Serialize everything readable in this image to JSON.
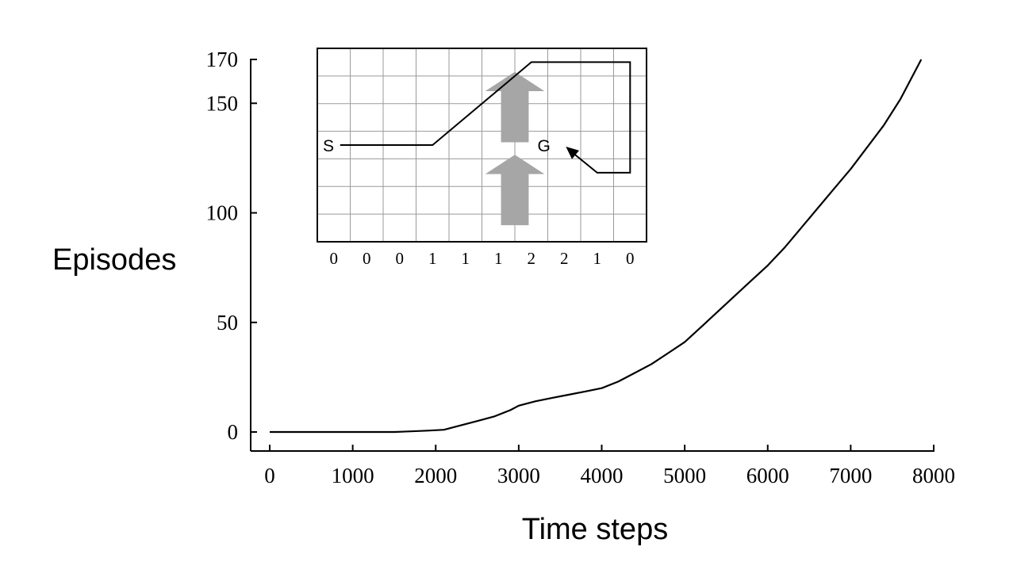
{
  "chart_data": [
    {
      "type": "line",
      "title": "",
      "xlabel": "Time steps",
      "ylabel": "Episodes",
      "xlim": [
        0,
        8000
      ],
      "ylim": [
        0,
        170
      ],
      "x_ticks": [
        0,
        1000,
        2000,
        3000,
        4000,
        5000,
        6000,
        7000,
        8000
      ],
      "x_tick_labels": [
        "0",
        "1000",
        "2000",
        "3000",
        "4000",
        "5000",
        "6000",
        "7000",
        "8000"
      ],
      "y_ticks": [
        0,
        50,
        100,
        150,
        170
      ],
      "y_tick_labels": [
        "0",
        "50",
        "100",
        "150",
        "170"
      ],
      "grid": false,
      "series": [
        {
          "x": [
            0,
            1000,
            1500,
            1700,
            1900,
            2100,
            2300,
            2500,
            2700,
            2900,
            3000,
            3200,
            3400,
            3600,
            3800,
            4000,
            4200,
            4400,
            4600,
            4800,
            5000,
            5200,
            5400,
            5600,
            5800,
            6000,
            6200,
            6400,
            6600,
            6800,
            7000,
            7200,
            7400,
            7600,
            7850
          ],
          "y": [
            0,
            0,
            0,
            0.3,
            0.6,
            1,
            3,
            5,
            7,
            10,
            12,
            14,
            15.5,
            17,
            18.5,
            20,
            23,
            27,
            31,
            36,
            41,
            48,
            55,
            62,
            69,
            76,
            84,
            93,
            102,
            111,
            120,
            130,
            140,
            152,
            170
          ]
        }
      ]
    },
    {
      "type": "line",
      "title": "",
      "inset": true,
      "grid": true,
      "columns": 10,
      "rows": 7,
      "column_labels": [
        "0",
        "0",
        "0",
        "1",
        "1",
        "1",
        "2",
        "2",
        "1",
        "0"
      ],
      "start_label": "S",
      "goal_label": "G",
      "arrow_color": "#a6a6a6",
      "grid_color": "#9a9a9a",
      "path": {
        "x": [
          0,
          3,
          6,
          9,
          9,
          8,
          7
        ],
        "y": [
          3,
          3,
          0,
          0,
          4,
          4,
          3
        ]
      },
      "start": [
        0,
        3
      ],
      "goal": [
        7,
        3
      ],
      "wind_arrows": [
        {
          "column_center": 6,
          "top_row": 1,
          "bottom_row": 3
        },
        {
          "column_center": 6,
          "top_row": 4,
          "bottom_row": 6
        }
      ]
    }
  ]
}
